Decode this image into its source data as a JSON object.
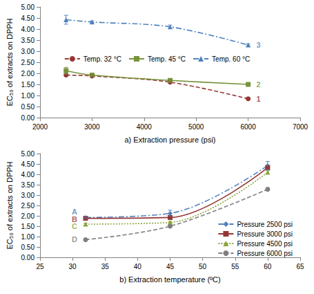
{
  "chart_data": [
    {
      "type": "line",
      "x_label": "a) Extraction pressure (psi)",
      "y_label": "EC₅₀ of extracts on DPPH",
      "xlim": [
        2000,
        7000
      ],
      "xticks": [
        2000,
        3000,
        4000,
        5000,
        6000,
        7000
      ],
      "ylim": [
        0,
        5
      ],
      "yticks": [
        {
          "value": 0,
          "label": "0.00"
        },
        {
          "value": 0.5,
          "label": "0.50"
        },
        {
          "value": 1,
          "label": "1.00"
        },
        {
          "value": 1.5,
          "label": "1.50"
        },
        {
          "value": 2,
          "label": "2.00"
        },
        {
          "value": 2.5,
          "label": "2.50"
        },
        {
          "value": 3,
          "label": "3.00"
        },
        {
          "value": 3.5,
          "label": "3.50"
        },
        {
          "value": 4,
          "label": "4.00"
        },
        {
          "value": 4.5,
          "label": "4.50"
        },
        {
          "value": 5,
          "label": "5.00"
        }
      ],
      "grid": false,
      "legend": "center",
      "x": [
        2500,
        3000,
        4500,
        6000
      ],
      "series": [
        {
          "name": "Temp. 32 °C",
          "color": "#953735",
          "marker": "circle",
          "line_style": "dashed",
          "values": [
            1.92,
            1.88,
            1.6,
            0.85
          ],
          "errors": [
            0.05,
            0.05,
            0.05,
            0.05
          ]
        },
        {
          "name": "Temp. 45 °C",
          "color": "#77933c",
          "marker": "square",
          "line_style": "solid",
          "values": [
            2.12,
            1.92,
            1.68,
            1.5
          ],
          "errors": [
            0.15,
            0.05,
            0.05,
            0.03
          ]
        },
        {
          "name": "Temp. 60 °C",
          "color": "#4f81bd",
          "marker": "triangle",
          "line_style": "dashdot",
          "values": [
            4.42,
            4.32,
            4.1,
            3.28
          ],
          "errors": [
            0.2,
            0.05,
            0.08,
            0.05
          ]
        }
      ],
      "annotations": [
        {
          "text": "1",
          "x": 6200,
          "y": 0.85,
          "color": "#953735"
        },
        {
          "text": "2",
          "x": 6200,
          "y": 1.5,
          "color": "#77933c"
        },
        {
          "text": "3",
          "x": 6200,
          "y": 3.28,
          "color": "#4f81bd"
        }
      ]
    },
    {
      "type": "line",
      "x_label": "b) Extraction temperature (ºC)",
      "y_label": "EC₅₀ of extracts on DPPH",
      "xlim": [
        25,
        65
      ],
      "xticks": [
        25,
        30,
        35,
        40,
        45,
        50,
        55,
        60,
        65
      ],
      "ylim": [
        0,
        5
      ],
      "yticks": [
        {
          "value": 0,
          "label": "0.00"
        },
        {
          "value": 0.5,
          "label": "0.50"
        },
        {
          "value": 1,
          "label": "1.00"
        },
        {
          "value": 1.5,
          "label": "1.50"
        },
        {
          "value": 2,
          "label": "2.00"
        },
        {
          "value": 2.5,
          "label": "2.50"
        },
        {
          "value": 3,
          "label": "3.00"
        },
        {
          "value": 3.5,
          "label": "3.50"
        },
        {
          "value": 4,
          "label": "4.00"
        },
        {
          "value": 4.5,
          "label": "4.50"
        },
        {
          "value": 5,
          "label": "5.00"
        }
      ],
      "grid": false,
      "legend": "lower right",
      "x": [
        32,
        45,
        60
      ],
      "series": [
        {
          "name": "Pressure 2500 psi",
          "color": "#4f81bd",
          "marker": "diamond",
          "line_style": "dashdot",
          "values": [
            1.92,
            2.12,
            4.42
          ],
          "errors": [
            0.05,
            0.15,
            0.2
          ]
        },
        {
          "name": "Pressure 3000 psi",
          "color": "#953735",
          "marker": "square",
          "line_style": "solid",
          "values": [
            1.88,
            1.92,
            4.32
          ],
          "errors": [
            0.05,
            0.05,
            0.05
          ]
        },
        {
          "name": "Pressure 4500 psi",
          "color": "#8aa63c",
          "marker": "triangle",
          "line_style": "dotted",
          "values": [
            1.6,
            1.68,
            4.1
          ],
          "errors": [
            0.05,
            0.05,
            0.08
          ]
        },
        {
          "name": "Pressure 6000 psi",
          "color": "#7f7f7f",
          "marker": "circle",
          "line_style": "dashed",
          "values": [
            0.85,
            1.5,
            3.28
          ],
          "errors": [
            0.05,
            0.03,
            0.05
          ]
        }
      ],
      "annotations": [
        {
          "text": "A",
          "x": 30.3,
          "y": 2.2,
          "color": "#4f81bd"
        },
        {
          "text": "B",
          "x": 30.3,
          "y": 1.85,
          "color": "#953735"
        },
        {
          "text": "C",
          "x": 30.3,
          "y": 1.5,
          "color": "#8aa63c"
        },
        {
          "text": "D",
          "x": 30.3,
          "y": 0.88,
          "color": "#7f7f7f"
        }
      ]
    }
  ]
}
